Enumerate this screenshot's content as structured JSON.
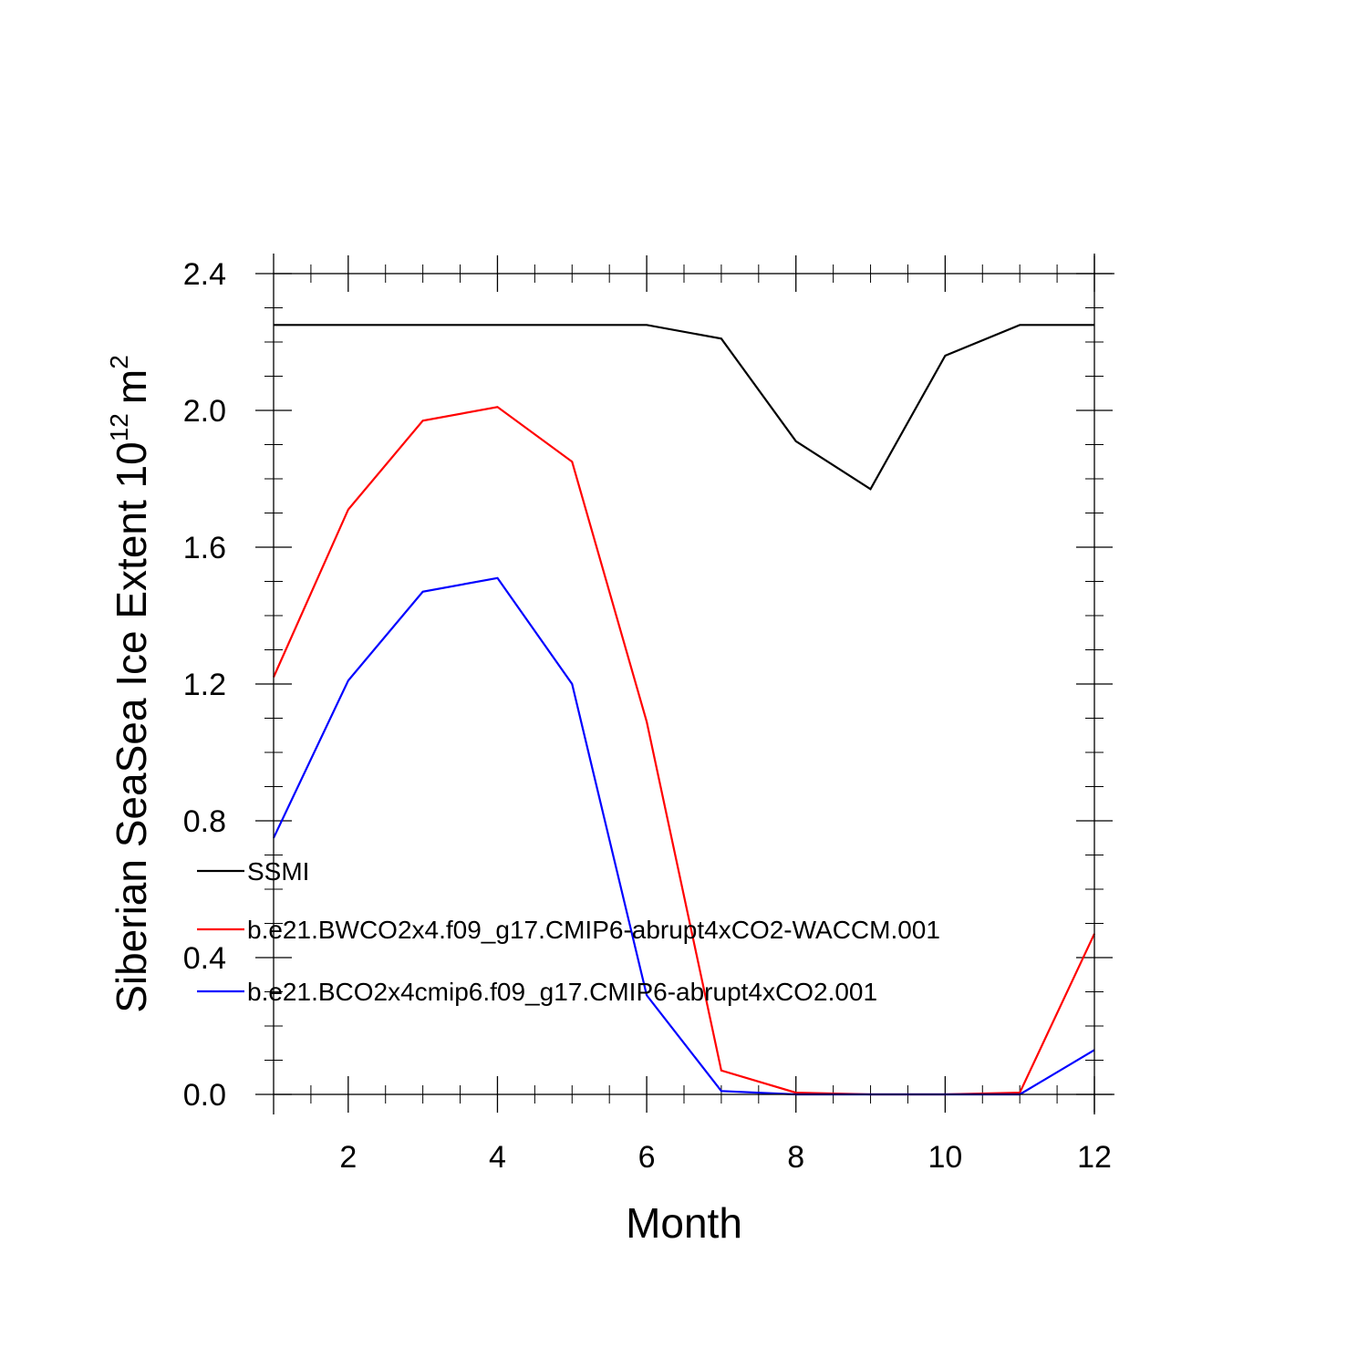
{
  "chart_data": {
    "type": "line",
    "xlabel": "Month",
    "ylabel": "Siberian SeaSea Ice Extent 10",
    "ylabel_sup": "12",
    "ylabel_unit": "m",
    "ylabel_unit_sup": "2",
    "xlim": [
      1,
      12
    ],
    "ylim": [
      0,
      2.4
    ],
    "x_ticks": [
      2,
      4,
      6,
      8,
      10,
      12
    ],
    "x_tick_labels": [
      "2",
      "4",
      "6",
      "8",
      "10",
      "12"
    ],
    "y_ticks": [
      0,
      0.4,
      0.8,
      1.2,
      1.6,
      2.0,
      2.4
    ],
    "y_tick_labels": [
      "0.0",
      "0.4",
      "0.8",
      "1.2",
      "1.6",
      "2.0",
      "2.4"
    ],
    "grid": false,
    "legend_position": "lower-left inside",
    "x": [
      1,
      2,
      3,
      4,
      5,
      6,
      7,
      8,
      9,
      10,
      11,
      12
    ],
    "series": [
      {
        "name": "SSMI",
        "color": "#000000",
        "values": [
          2.25,
          2.25,
          2.25,
          2.25,
          2.25,
          2.25,
          2.21,
          1.91,
          1.77,
          2.16,
          2.25,
          2.25
        ]
      },
      {
        "name": "b.e21.BWCO2x4.f09_g17.CMIP6-abrupt4xCO2-WACCM.001",
        "color": "#ff0000",
        "values": [
          1.22,
          1.71,
          1.97,
          2.01,
          1.85,
          1.09,
          0.07,
          0.005,
          0.0,
          0.0,
          0.005,
          0.47
        ]
      },
      {
        "name": "b.e21.BCO2x4cmip6.f09_g17.CMIP6-abrupt4xCO2.001",
        "color": "#0000ff",
        "values": [
          0.75,
          1.21,
          1.47,
          1.51,
          1.2,
          0.29,
          0.01,
          0.0,
          0.0,
          0.0,
          0.0,
          0.13
        ]
      }
    ]
  }
}
